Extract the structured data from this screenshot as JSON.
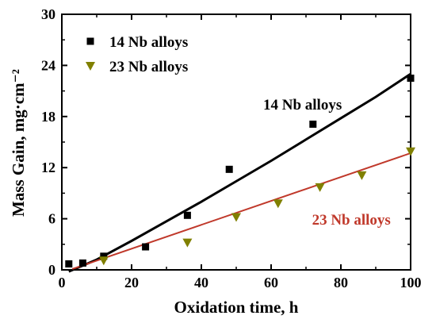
{
  "chart_data": {
    "type": "scatter",
    "title": "",
    "xlabel": "Oxidation time, h",
    "ylabel": "Mass Gain, mg·cm⁻²",
    "xlim": [
      0,
      100
    ],
    "ylim": [
      0,
      30
    ],
    "xticks": [
      "0",
      "20",
      "40",
      "60",
      "80",
      "100"
    ],
    "yticks": [
      "0",
      "6",
      "12",
      "18",
      "24",
      "30"
    ],
    "xtick_values": [
      0,
      20,
      40,
      60,
      80,
      100
    ],
    "ytick_values": [
      0,
      6,
      12,
      18,
      24,
      30
    ],
    "grid": false,
    "legend_position": "top-left",
    "series": [
      {
        "name": "14 Nb alloys",
        "marker": "square",
        "color": "#000000",
        "x": [
          2,
          6,
          12,
          24,
          36,
          48,
          72,
          100
        ],
        "y": [
          0.7,
          0.8,
          1.6,
          2.7,
          6.4,
          11.8,
          17.1,
          22.5
        ],
        "fit": {
          "color": "#000000",
          "x": [
            2,
            10,
            20,
            30,
            40,
            50,
            60,
            70,
            80,
            90,
            100
          ],
          "y": [
            -0.2,
            1.2,
            3.4,
            5.7,
            8.0,
            10.4,
            12.8,
            15.3,
            17.8,
            20.3,
            23.0
          ]
        }
      },
      {
        "name": "23 Nb alloys",
        "marker": "triangle-down",
        "color": "#808000",
        "x": [
          12,
          36,
          50,
          62,
          74,
          86,
          100
        ],
        "y": [
          1.1,
          3.2,
          6.2,
          7.8,
          9.7,
          11.1,
          13.9
        ],
        "fit": {
          "color": "#c0392b",
          "x": [
            3,
            100
          ],
          "y": [
            0.1,
            13.7
          ]
        }
      }
    ],
    "annotations": [
      {
        "text": "14 Nb alloys",
        "color": "#000000",
        "x": 69,
        "y": 18.8
      },
      {
        "text": "23 Nb alloys",
        "color": "#c0392b",
        "x": 83,
        "y": 5.3
      }
    ]
  }
}
